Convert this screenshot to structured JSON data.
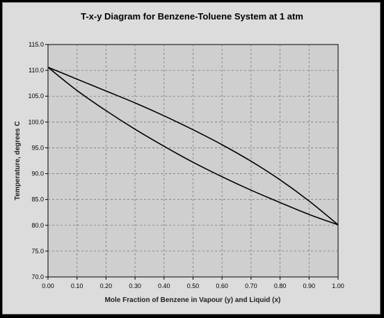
{
  "chart_data": {
    "type": "line",
    "title": "T-x-y Diagram for Benzene-Toluene System at 1 atm",
    "xlabel": "Mole Fraction of Benzene in Vapour (y) and Liquid (x)",
    "ylabel": "Temperature, degrees C",
    "xlim": [
      0,
      1
    ],
    "ylim": [
      70,
      115
    ],
    "xticks": [
      "0.00",
      "0.10",
      "0.20",
      "0.30",
      "0.40",
      "0.50",
      "0.60",
      "0.70",
      "0.80",
      "0.90",
      "1.00"
    ],
    "yticks": [
      "70.0",
      "75.0",
      "80.0",
      "85.0",
      "90.0",
      "95.0",
      "100.0",
      "105.0",
      "110.0",
      "115.0"
    ],
    "grid": true,
    "legend": "none",
    "line_color": "#000000",
    "plot_bg": "#cfcfcf",
    "series": [
      {
        "x": [
          0.0,
          0.1,
          0.2,
          0.3,
          0.4,
          0.5,
          0.6,
          0.7,
          0.8,
          0.9,
          1.0
        ],
        "y": [
          110.6,
          106.1,
          102.2,
          98.6,
          95.3,
          92.2,
          89.4,
          86.8,
          84.4,
          82.1,
          80.1
        ]
      },
      {
        "x": [
          0.0,
          0.1,
          0.2,
          0.3,
          0.4,
          0.5,
          0.6,
          0.7,
          0.8,
          0.9,
          1.0
        ],
        "y": [
          110.6,
          108.3,
          106.0,
          103.7,
          101.2,
          98.5,
          95.6,
          92.4,
          88.8,
          84.7,
          80.1
        ]
      }
    ]
  }
}
